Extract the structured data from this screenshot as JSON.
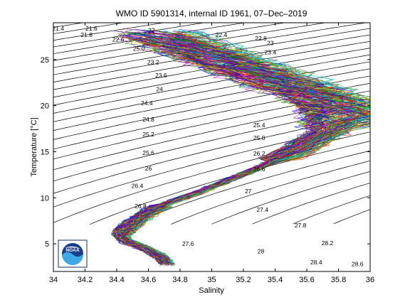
{
  "chart_data": {
    "type": "scatter",
    "title": "WMO ID 5901314, internal ID 1961, 07–Dec–2019",
    "xlabel": "Salinity",
    "ylabel": "Temperature [°C]",
    "xlim": [
      34,
      36
    ],
    "ylim": [
      2,
      29
    ],
    "xticks": [
      "34",
      "34.2",
      "34.4",
      "34.6",
      "34.8",
      "35",
      "35.2",
      "35.4",
      "35.6",
      "35.8",
      "36"
    ],
    "yticks": [
      "5",
      "10",
      "15",
      "20",
      "25"
    ],
    "grid": false,
    "legend": "none",
    "density_contours": {
      "sigma_min": 21.0,
      "sigma_step": 0.2,
      "sigma_count": 46,
      "labels": [
        {
          "text": "21.4",
          "s": 34.03,
          "t": 28.4
        },
        {
          "text": "21.6",
          "s": 34.24,
          "t": 28.4
        },
        {
          "text": "21.8",
          "s": 34.21,
          "t": 27.7
        },
        {
          "text": "22",
          "s": 34.62,
          "t": 28.2
        },
        {
          "text": "22.4",
          "s": 35.06,
          "t": 27.7
        },
        {
          "text": "22.6",
          "s": 34.41,
          "t": 27.2
        },
        {
          "text": "22.8",
          "s": 35.31,
          "t": 27.3
        },
        {
          "text": "23",
          "s": 35.37,
          "t": 26.8
        },
        {
          "text": "23.4",
          "s": 35.37,
          "t": 25.8
        },
        {
          "text": "23.2",
          "s": 34.63,
          "t": 24.7
        },
        {
          "text": "23.6",
          "s": 34.68,
          "t": 23.3
        },
        {
          "text": "25.0",
          "s": 34.54,
          "t": 26.2
        },
        {
          "text": "24",
          "s": 34.67,
          "t": 21.8
        },
        {
          "text": "24.4",
          "s": 34.59,
          "t": 20.3
        },
        {
          "text": "24.8",
          "s": 34.6,
          "t": 18.5
        },
        {
          "text": "25.2",
          "s": 34.6,
          "t": 16.9
        },
        {
          "text": "25.6",
          "s": 34.6,
          "t": 14.9
        },
        {
          "text": "26",
          "s": 34.6,
          "t": 13.2
        },
        {
          "text": "26.4",
          "s": 34.53,
          "t": 11.3
        },
        {
          "text": "26.8",
          "s": 34.55,
          "t": 9.1
        },
        {
          "text": "25.4",
          "s": 35.3,
          "t": 17.9
        },
        {
          "text": "25.8",
          "s": 35.3,
          "t": 16.5
        },
        {
          "text": "26.2",
          "s": 35.3,
          "t": 14.8
        },
        {
          "text": "26.6",
          "s": 35.3,
          "t": 13.1
        },
        {
          "text": "27",
          "s": 35.23,
          "t": 10.7
        },
        {
          "text": "27.4",
          "s": 35.32,
          "t": 8.7
        },
        {
          "text": "27.8",
          "s": 35.56,
          "t": 7.0
        },
        {
          "text": "27.6",
          "s": 34.85,
          "t": 5.0
        },
        {
          "text": "28",
          "s": 35.31,
          "t": 4.2
        },
        {
          "text": "28.2",
          "s": 35.73,
          "t": 5.1
        },
        {
          "text": "28.4",
          "s": 35.66,
          "t": 3.0
        },
        {
          "text": "28.6",
          "s": 35.92,
          "t": 2.8
        }
      ]
    },
    "profiles": {
      "count": 140,
      "colors": [
        "#0000ff",
        "#008000",
        "#ff0000",
        "#00bfbf",
        "#bf00bf",
        "#bfbf00",
        "#404040"
      ],
      "median_path": [
        {
          "s": 34.72,
          "t": 2.8
        },
        {
          "s": 34.68,
          "t": 3.6
        },
        {
          "s": 34.57,
          "t": 4.6
        },
        {
          "s": 34.46,
          "t": 5.3
        },
        {
          "s": 34.43,
          "t": 5.8
        },
        {
          "s": 34.46,
          "t": 6.6
        },
        {
          "s": 34.53,
          "t": 7.6
        },
        {
          "s": 34.62,
          "t": 8.6
        },
        {
          "s": 34.75,
          "t": 9.6
        },
        {
          "s": 34.95,
          "t": 10.8
        },
        {
          "s": 35.12,
          "t": 12.0
        },
        {
          "s": 35.3,
          "t": 13.3
        },
        {
          "s": 35.52,
          "t": 15.0
        },
        {
          "s": 35.72,
          "t": 17.0
        },
        {
          "s": 35.84,
          "t": 19.0
        },
        {
          "s": 35.74,
          "t": 20.6
        },
        {
          "s": 35.55,
          "t": 22.0
        },
        {
          "s": 35.3,
          "t": 23.6
        },
        {
          "s": 35.08,
          "t": 25.0
        },
        {
          "s": 34.86,
          "t": 26.5
        },
        {
          "s": 34.62,
          "t": 28.0
        }
      ]
    }
  }
}
